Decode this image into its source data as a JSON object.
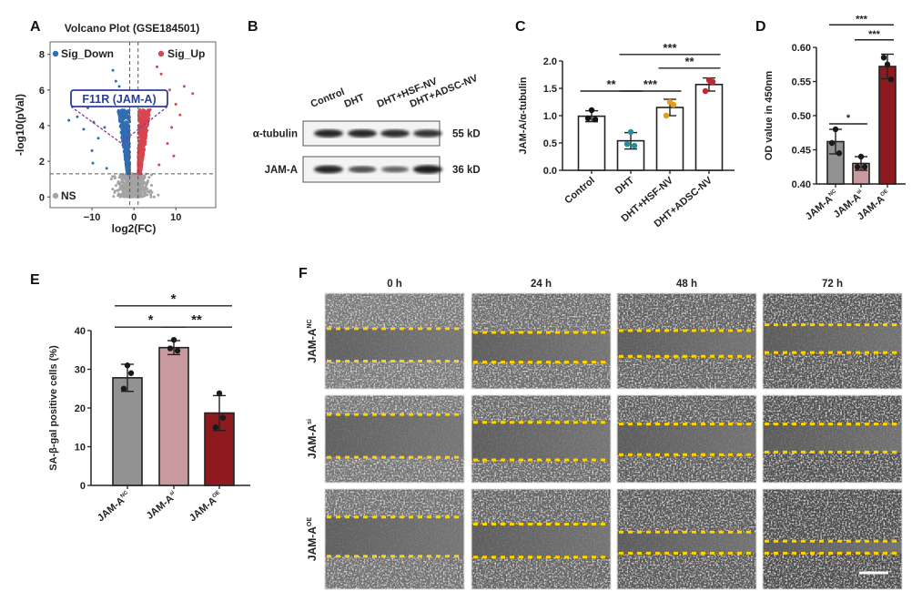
{
  "panel_labels": {
    "a": "A",
    "b": "B",
    "c": "C",
    "d": "D",
    "e": "E",
    "f": "F"
  },
  "colors": {
    "sig_down": "#2f6db5",
    "sig_up": "#d8454f",
    "ns": "#a3a3a3",
    "annotation": "#2b3f98",
    "connector": "#7a3c9e",
    "nc": "#929292",
    "si": "#c8999d",
    "oe": "#8c1a1e",
    "wound_line": "#ffd400"
  },
  "chart_data": [
    {
      "panel": "A",
      "type": "scatter",
      "title": "Volcano Plot (GSE184501)",
      "xlabel": "log2(FC)",
      "ylabel": "-log10(pVal)",
      "xlim": [
        -20,
        19.5
      ],
      "ylim": [
        -0.6,
        8.7
      ],
      "xticks": [
        -10,
        0,
        10
      ],
      "yticks": [
        0,
        2,
        4,
        6,
        8
      ],
      "pval_threshold": 1.3,
      "fc_thresholds": [
        -1,
        1
      ],
      "legend": {
        "sig_down": "Sig_Down",
        "sig_up": "Sig_Up",
        "ns": "NS"
      },
      "annotation": {
        "label": "F11R (JAM-A)",
        "x": -3,
        "y": 3.1
      },
      "outliers_down": [
        [
          -13.5,
          4.5
        ],
        [
          -12,
          3.8
        ],
        [
          -15.5,
          4.3
        ],
        [
          -10,
          2.6
        ],
        [
          -8.5,
          3.3
        ],
        [
          -9.6,
          4.2
        ],
        [
          -5,
          7.1
        ],
        [
          -4.3,
          6.5
        ],
        [
          -11,
          5.0
        ],
        [
          -7,
          3.9
        ],
        [
          -6.5,
          1.6
        ],
        [
          -9.8,
          1.9
        ],
        [
          -3.5,
          6.2
        ]
      ],
      "outliers_up": [
        [
          14,
          5.8
        ],
        [
          9,
          3.9
        ],
        [
          10,
          5.2
        ],
        [
          6.5,
          6.9
        ],
        [
          8.5,
          6.0
        ],
        [
          12,
          6.2
        ],
        [
          7.5,
          5.5
        ],
        [
          9.5,
          2.3
        ],
        [
          6,
          1.8
        ],
        [
          11,
          4.6
        ],
        [
          5.5,
          7.3
        ],
        [
          8,
          3.0
        ]
      ]
    },
    {
      "panel": "B",
      "type": "table",
      "lanes": [
        "Control",
        "DHT",
        "DHT+HSF-NV",
        "DHT+ADSC-NV"
      ],
      "rows": [
        {
          "label": "α-tubulin",
          "size": "55 kD",
          "band_intensity": [
            1.0,
            1.0,
            0.95,
            0.9
          ]
        },
        {
          "label": "JAM-A",
          "size": "36 kD",
          "band_intensity": [
            1.0,
            0.7,
            0.55,
            1.1
          ]
        }
      ]
    },
    {
      "panel": "C",
      "type": "bar",
      "ylabel": "JAM-A/α-tubulin",
      "ylim": [
        0,
        2.0
      ],
      "yticks": [
        "0.0",
        "0.5",
        "1.0",
        "1.5",
        "2.0"
      ],
      "categories": [
        "Control",
        "DHT",
        "DHT+HSF-NV",
        "DHT+ADSC-NV"
      ],
      "values": [
        0.99,
        0.54,
        1.15,
        1.57
      ],
      "errors": [
        0.1,
        0.15,
        0.15,
        0.12
      ],
      "points": [
        [
          1.1,
          0.93,
          0.95
        ],
        [
          0.7,
          0.45,
          0.48
        ],
        [
          1.25,
          1.2,
          1.0
        ],
        [
          1.65,
          1.62,
          1.45
        ]
      ],
      "point_colors": [
        "#111111",
        "#1f8ea0",
        "#e49a1c",
        "#c4262c"
      ],
      "bar_colors": [
        "#ffffff",
        "#ffffff",
        "#ffffff",
        "#ffffff"
      ],
      "significance": [
        {
          "from": 0,
          "to": 1,
          "level": 1.45,
          "label": "**"
        },
        {
          "from": 1,
          "to": 2,
          "level": 1.45,
          "label": "***"
        },
        {
          "from": 2,
          "to": 3,
          "level": 1.87,
          "label": "**"
        },
        {
          "from": 1,
          "to": 3,
          "level": 2.12,
          "label": "***"
        }
      ]
    },
    {
      "panel": "D",
      "type": "bar",
      "ylabel": "OD value in 450nm",
      "ylim": [
        0.4,
        0.6
      ],
      "yticks": [
        "0.40",
        "0.45",
        "0.50",
        "0.55",
        "0.60"
      ],
      "categories": [
        {
          "base": "JAM-A",
          "sup": "NC"
        },
        {
          "base": "JAM-A",
          "sup": "si"
        },
        {
          "base": "JAM-A",
          "sup": "OE"
        }
      ],
      "values": [
        0.462,
        0.43,
        0.572
      ],
      "errors": [
        0.018,
        0.01,
        0.018
      ],
      "points": [
        [
          0.48,
          0.445,
          0.46
        ],
        [
          0.44,
          0.425,
          0.425
        ],
        [
          0.575,
          0.553,
          0.585
        ]
      ],
      "bar_colors": [
        "#929292",
        "#c8999d",
        "#8c1a1e"
      ],
      "significance": [
        {
          "from": 0,
          "to": 1,
          "level": 0.488,
          "label": "*"
        },
        {
          "from": 1,
          "to": 2,
          "level": 0.611,
          "label": "***"
        },
        {
          "from": 0,
          "to": 2,
          "level": 0.633,
          "label": "***"
        }
      ]
    },
    {
      "panel": "E",
      "type": "bar",
      "ylabel": "SA-β-gal positive cells (%)",
      "ylim": [
        0,
        40
      ],
      "yticks": [
        "0",
        "10",
        "20",
        "30",
        "40"
      ],
      "categories": [
        {
          "base": "JAM-A",
          "sup": "NC"
        },
        {
          "base": "JAM-A",
          "sup": "si"
        },
        {
          "base": "JAM-A",
          "sup": "OE"
        }
      ],
      "values": [
        27.8,
        35.6,
        18.7
      ],
      "errors": [
        3.5,
        1.8,
        4.5
      ],
      "points": [
        [
          31,
          29,
          25
        ],
        [
          37.6,
          34.8,
          35.4
        ],
        [
          23.8,
          17.5,
          15
        ]
      ],
      "bar_colors": [
        "#929292",
        "#c8999d",
        "#8c1a1e"
      ],
      "significance": [
        {
          "from": 0,
          "to": 1,
          "level": 40.9,
          "label": "*"
        },
        {
          "from": 1,
          "to": 2,
          "level": 40.9,
          "label": "**"
        },
        {
          "from": 0,
          "to": 2,
          "level": 46.4,
          "label": "*"
        }
      ]
    }
  ],
  "panel_f": {
    "timepoints": [
      "0 h",
      "24 h",
      "48 h",
      "72 h"
    ],
    "rows": [
      {
        "base": "JAM-A",
        "sup": "NC"
      },
      {
        "base": "JAM-A",
        "sup": "si"
      },
      {
        "base": "JAM-A",
        "sup": "OE"
      }
    ]
  }
}
